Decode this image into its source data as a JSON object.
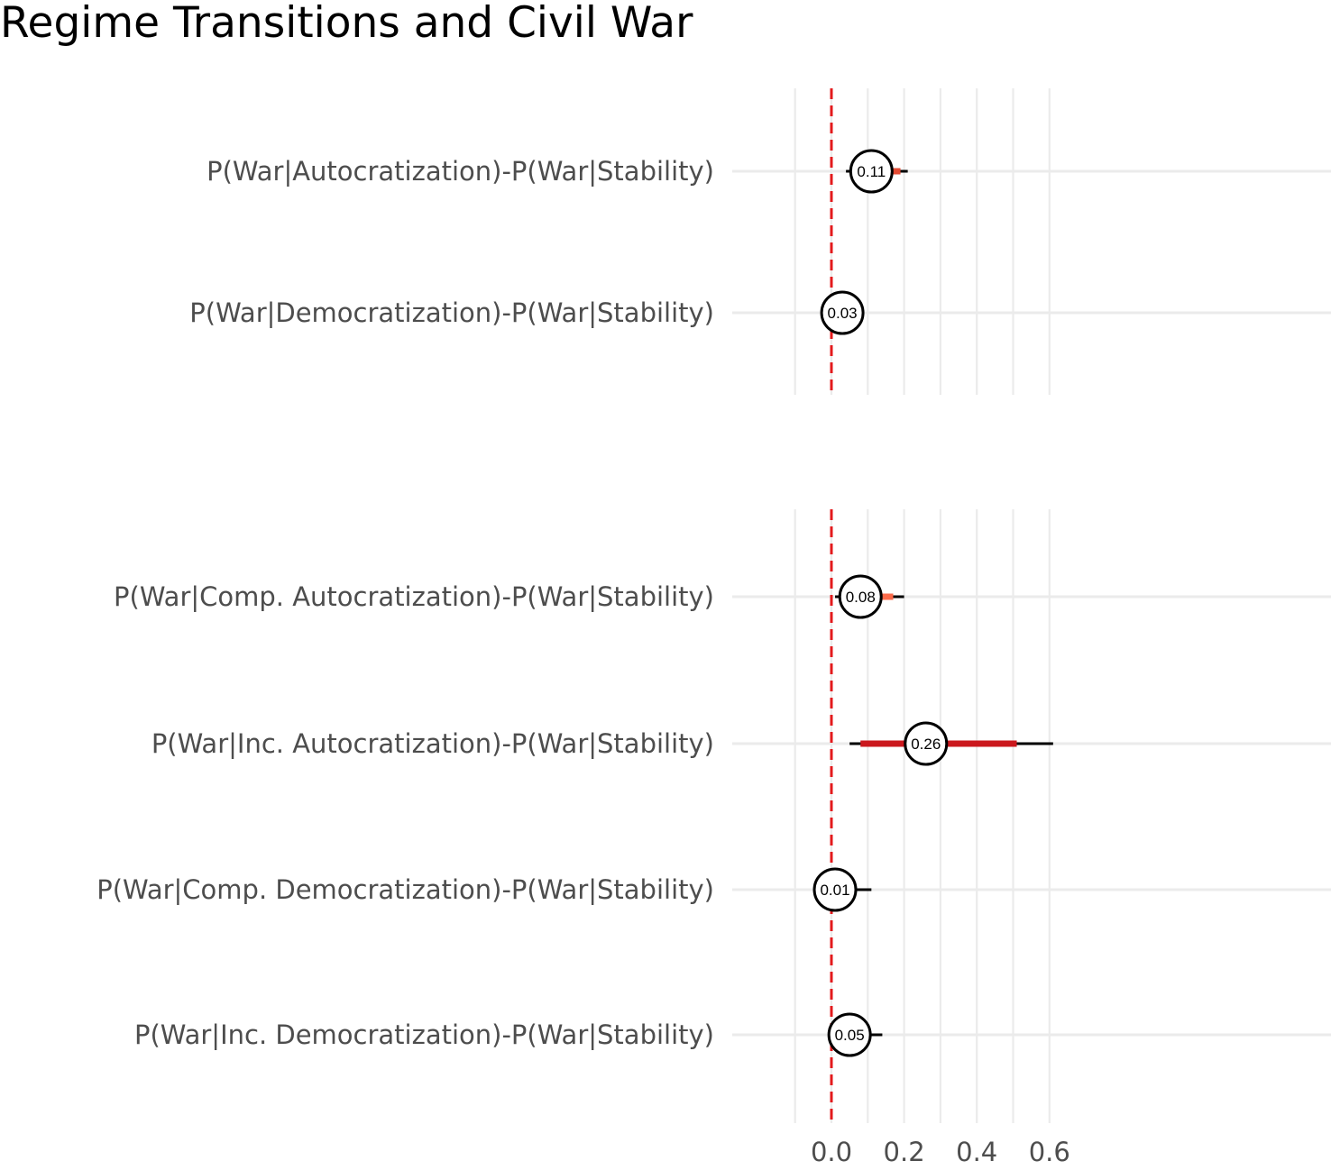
{
  "title": "Regime Transitions and Civil War",
  "chart_data": [
    {
      "type": "interval",
      "xlim": [
        -0.1,
        0.65
      ],
      "grid": true,
      "reference_line": {
        "x": 0,
        "style": "dashed",
        "color": "#e31a1c"
      },
      "x_ticks": [
        0.0,
        0.2,
        0.4,
        0.6
      ],
      "x_tick_labels": [
        "",
        "",
        "",
        ""
      ],
      "rows": [
        {
          "label": "P(War|Autocratization)-P(War|Stability)",
          "estimate": 0.11,
          "estimate_label": "0.11",
          "thin": [
            0.04,
            0.21
          ],
          "thick": [
            0.05,
            0.19
          ],
          "color": "#e34a33"
        },
        {
          "label": "P(War|Democratization)-P(War|Stability)",
          "estimate": 0.03,
          "estimate_label": "0.03",
          "thin": [
            -0.01,
            0.09
          ],
          "thick": [
            0.0,
            0.07
          ],
          "color": "#6baed6"
        }
      ]
    },
    {
      "type": "interval",
      "xlim": [
        -0.1,
        0.65
      ],
      "grid": true,
      "reference_line": {
        "x": 0,
        "style": "dashed",
        "color": "#e31a1c"
      },
      "x_ticks": [
        0.0,
        0.2,
        0.4,
        0.6
      ],
      "x_tick_labels": [
        "0.0",
        "0.2",
        "0.4",
        "0.6"
      ],
      "rows": [
        {
          "label": "P(War|Comp. Autocratization)-P(War|Stability)",
          "estimate": 0.08,
          "estimate_label": "0.08",
          "thin": [
            0.01,
            0.2
          ],
          "thick": [
            0.02,
            0.17
          ],
          "color": "#fb6a4a"
        },
        {
          "label": "P(War|Inc. Autocratization)-P(War|Stability)",
          "estimate": 0.26,
          "estimate_label": "0.26",
          "thin": [
            0.05,
            0.61
          ],
          "thick": [
            0.08,
            0.51
          ],
          "color": "#cb181d"
        },
        {
          "label": "P(War|Comp. Democratization)-P(War|Stability)",
          "estimate": 0.01,
          "estimate_label": "0.01",
          "thin": [
            -0.03,
            0.11
          ],
          "thick": [
            -0.02,
            0.07
          ],
          "color": "#6baed6"
        },
        {
          "label": "P(War|Inc. Democratization)-P(War|Stability)",
          "estimate": 0.05,
          "estimate_label": "0.05",
          "thin": [
            0.0,
            0.14
          ],
          "thick": [
            0.0,
            0.11
          ],
          "color": "#08519c"
        }
      ]
    }
  ]
}
